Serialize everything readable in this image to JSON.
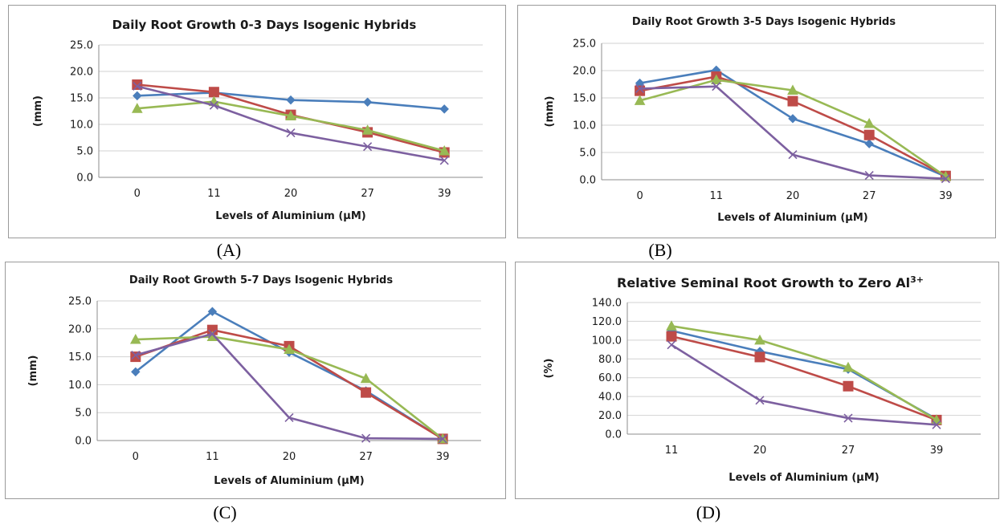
{
  "chart_data": [
    {
      "type": "line",
      "title": "Daily Root Growth 0-3 Days Isogenic Hybrids",
      "xlabel": "Levels of  Aluminium (µM)",
      "ylabel": "(mm)",
      "categories": [
        "0",
        "11",
        "20",
        "27",
        "39"
      ],
      "yticks": [
        "0.0",
        "5.0",
        "10.0",
        "15.0",
        "20.0",
        "25.0"
      ],
      "ylim": [
        0,
        25
      ],
      "grid": true,
      "series": [
        {
          "values": [
            15.4,
            16.0,
            14.6,
            14.2,
            12.9
          ],
          "color": "#4a7ebb",
          "marker": "diamond"
        },
        {
          "values": [
            17.5,
            16.1,
            11.8,
            8.5,
            4.7
          ],
          "color": "#be4b48",
          "marker": "square"
        },
        {
          "values": [
            13.0,
            14.3,
            11.6,
            8.9,
            5.0
          ],
          "color": "#98b954",
          "marker": "triangle"
        },
        {
          "values": [
            17.2,
            13.6,
            8.4,
            5.8,
            3.2
          ],
          "color": "#7d60a0",
          "marker": "x"
        }
      ]
    },
    {
      "type": "line",
      "title": "Daily Root Growth 3-5 Days Isogenic Hybrids",
      "xlabel": "Levels of  Aluminium (µM)",
      "ylabel": "(mm)",
      "categories": [
        "0",
        "11",
        "20",
        "27",
        "39"
      ],
      "yticks": [
        "0.0",
        "5.0",
        "10.0",
        "15.0",
        "20.0",
        "25.0"
      ],
      "ylim": [
        0,
        25
      ],
      "grid": true,
      "series": [
        {
          "values": [
            17.7,
            20.1,
            11.2,
            6.6,
            0.6
          ],
          "color": "#4a7ebb",
          "marker": "diamond"
        },
        {
          "values": [
            16.3,
            18.9,
            14.4,
            8.2,
            0.7
          ],
          "color": "#be4b48",
          "marker": "square"
        },
        {
          "values": [
            14.5,
            18.3,
            16.4,
            10.3,
            0.6
          ],
          "color": "#98b954",
          "marker": "triangle"
        },
        {
          "values": [
            16.7,
            17.1,
            4.6,
            0.8,
            0.2
          ],
          "color": "#7d60a0",
          "marker": "x"
        }
      ]
    },
    {
      "type": "line",
      "title": "Daily Root Growth 5-7 Days Isogenic Hybrids",
      "xlabel": "Levels of  Aluminium (µM)",
      "ylabel": "(mm)",
      "categories": [
        "0",
        "11",
        "20",
        "27",
        "39"
      ],
      "yticks": [
        "0.0",
        "5.0",
        "10.0",
        "15.0",
        "20.0",
        "25.0"
      ],
      "ylim": [
        0,
        25
      ],
      "grid": true,
      "series": [
        {
          "values": [
            12.3,
            23.1,
            15.8,
            8.9,
            0.3
          ],
          "color": "#4a7ebb",
          "marker": "diamond"
        },
        {
          "values": [
            15.0,
            19.8,
            16.9,
            8.6,
            0.3
          ],
          "color": "#be4b48",
          "marker": "square"
        },
        {
          "values": [
            18.1,
            18.6,
            16.3,
            11.1,
            0.3
          ],
          "color": "#98b954",
          "marker": "triangle"
        },
        {
          "values": [
            15.3,
            19.1,
            4.1,
            0.4,
            0.3
          ],
          "color": "#7d60a0",
          "marker": "x"
        }
      ]
    },
    {
      "type": "line",
      "title": "Relative Seminal Root Growth to Zero Al",
      "title_superscript": "3+",
      "xlabel": "Levels of  Aluminium (µM)",
      "ylabel": "(%)",
      "categories": [
        "11",
        "20",
        "27",
        "39"
      ],
      "yticks": [
        "0.0",
        "20.0",
        "40.0",
        "60.0",
        "80.0",
        "100.0",
        "120.0",
        "140.0"
      ],
      "ylim": [
        0,
        140
      ],
      "grid": true,
      "series": [
        {
          "values": [
            110.0,
            88.0,
            69.0,
            16.0
          ],
          "color": "#4a7ebb",
          "marker": "diamond"
        },
        {
          "values": [
            104.0,
            82.0,
            51.0,
            15.0
          ],
          "color": "#be4b48",
          "marker": "square"
        },
        {
          "values": [
            115.0,
            100.0,
            71.0,
            15.0
          ],
          "color": "#98b954",
          "marker": "triangle"
        },
        {
          "values": [
            95.0,
            36.0,
            17.0,
            10.0
          ],
          "color": "#7d60a0",
          "marker": "x"
        }
      ]
    }
  ],
  "captions": [
    "(A)",
    "(B)",
    "(C)",
    "(D)"
  ]
}
